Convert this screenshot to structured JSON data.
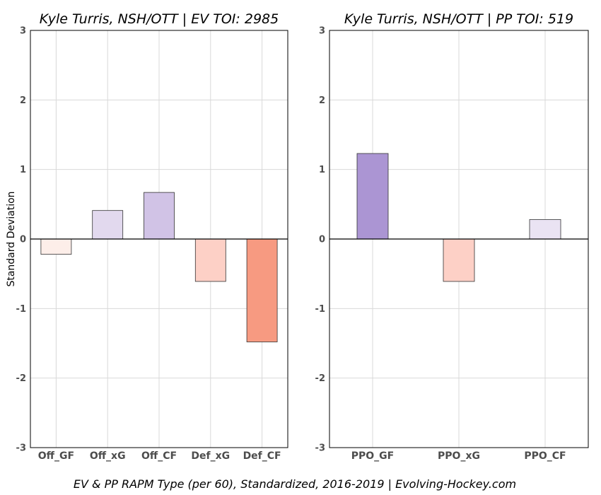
{
  "chart_data": [
    {
      "type": "bar",
      "title": "Kyle Turris, NSH/OTT  |  EV TOI: 2985",
      "ylabel": "Standard Deviation",
      "xlabel": "",
      "ylim": [
        -3,
        3
      ],
      "yticks": [
        3,
        2,
        1,
        0,
        -1,
        -2,
        -3
      ],
      "grid": true,
      "categories": [
        "Off_GF",
        "Off_xG",
        "Off_CF",
        "Def_xG",
        "Def_CF"
      ],
      "values": [
        -0.22,
        0.41,
        0.67,
        -0.61,
        -1.48
      ],
      "colors": [
        "#fdeee9",
        "#e2d9ee",
        "#d1c3e6",
        "#fdd0c6",
        "#f79a81"
      ]
    },
    {
      "type": "bar",
      "title": "Kyle Turris, NSH/OTT  |  PP TOI: 519",
      "ylabel": "",
      "xlabel": "",
      "ylim": [
        -3,
        3
      ],
      "yticks": [
        3,
        2,
        1,
        0,
        -1,
        -2,
        -3
      ],
      "grid": true,
      "categories": [
        "PPO_GF",
        "PPO_xG",
        "PPO_CF"
      ],
      "values": [
        1.23,
        -0.61,
        0.28
      ],
      "colors": [
        "#ab95d3",
        "#fdd0c6",
        "#eae3f3"
      ]
    }
  ],
  "caption": "EV & PP RAPM Type (per 60), Standardized, 2016-2019    |    Evolving-Hockey.com"
}
